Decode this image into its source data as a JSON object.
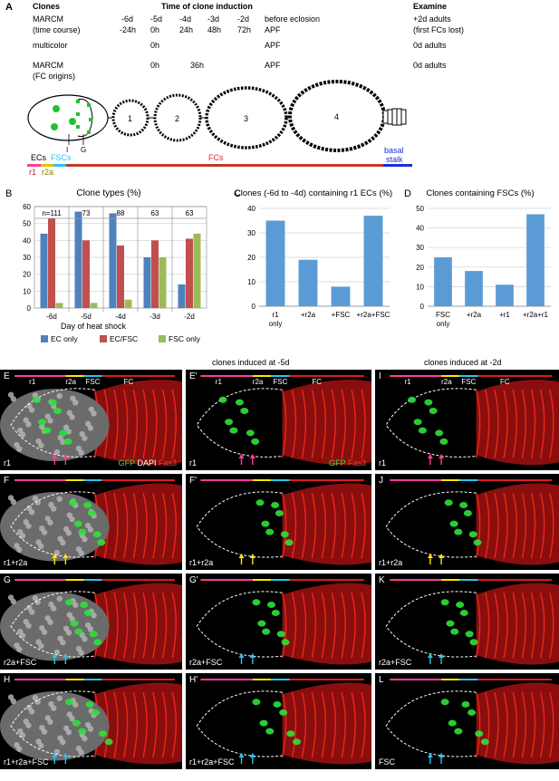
{
  "panelA": {
    "label": "A",
    "headers": {
      "clones": "Clones",
      "time": "Time of clone induction",
      "examine": "Examine"
    },
    "rows": [
      {
        "c1": "MARCM",
        "c2": "(time course)",
        "times1": [
          "-6d",
          "-5d",
          "-4d",
          "-3d",
          "-2d",
          "before eclosion"
        ],
        "times2": [
          "-24h",
          "0h",
          "24h",
          "48h",
          "72h",
          "APF"
        ],
        "ex1": "+2d adults",
        "ex2": "(first FCs lost)"
      },
      {
        "c1": "multicolor",
        "c2": "",
        "times1": [
          "0h",
          "APF"
        ],
        "ex1": "0d adults"
      },
      {
        "c1": "MARCM",
        "c2": "(FC origins)",
        "times1": [
          "0h",
          "36h",
          "APF"
        ],
        "ex1": "0d adults"
      }
    ],
    "diagram": {
      "egg_numbers": [
        "1",
        "2",
        "3",
        "4"
      ],
      "I": "I",
      "G": "G"
    },
    "regions": {
      "ecs": "ECs",
      "fscs": "FSCs",
      "fcs": "FCs",
      "basal": "basal",
      "stalk": "stalk",
      "r1": "r1",
      "r2a": "r2a"
    }
  },
  "chart_data": [
    {
      "panel": "B",
      "type": "bar",
      "title": "Clone types (%)",
      "xlabel": "Day of heat shock",
      "categories": [
        "-6d",
        "-5d",
        "-4d",
        "-3d",
        "-2d"
      ],
      "n_labels": [
        "n=111",
        "73",
        "88",
        "63",
        "63"
      ],
      "ylim": [
        0,
        60
      ],
      "yticks": [
        0,
        10,
        20,
        30,
        40,
        50,
        60
      ],
      "series": [
        {
          "name": "EC only",
          "color": "#4f81bd",
          "values": [
            44,
            57,
            56,
            30,
            14
          ]
        },
        {
          "name": "EC/FSC",
          "color": "#c0504d",
          "values": [
            53,
            40,
            37,
            40,
            41
          ]
        },
        {
          "name": "FSC only",
          "color": "#9bbb59",
          "values": [
            3,
            3,
            5,
            30,
            44
          ]
        }
      ]
    },
    {
      "panel": "C",
      "type": "bar",
      "title": "Clones (-6d to -4d) containing r1 ECs (%)",
      "categories": [
        "r1 only",
        "+r2a",
        "+FSC",
        "+r2a+FSC"
      ],
      "ylim": [
        0,
        40
      ],
      "yticks": [
        0,
        10,
        20,
        30,
        40
      ],
      "series": [
        {
          "color": "#5b9bd5",
          "values": [
            35,
            19,
            8,
            37
          ]
        }
      ]
    },
    {
      "panel": "D",
      "type": "bar",
      "title": "Clones containing FSCs (%)",
      "categories": [
        "FSC only",
        "+r2a",
        "+r1",
        "+r2a+r1"
      ],
      "ylim": [
        0,
        50
      ],
      "yticks": [
        0,
        10,
        20,
        30,
        40,
        50
      ],
      "series": [
        {
          "color": "#5b9bd5",
          "values": [
            25,
            18,
            11,
            47
          ]
        }
      ]
    }
  ],
  "micro": {
    "header_left": "clones induced at -5d",
    "header_right": "clones induced at -2d",
    "region_labels": {
      "r1": "r1",
      "r2a": "r2a",
      "fsc": "FSC",
      "fc": "FC"
    },
    "stain_left": {
      "gfp": "GFP",
      "dapi": "DAPI",
      "fas3": "Fas3"
    },
    "stain_mid": {
      "gfp": "GFP",
      "fas3": "Fas3"
    },
    "panels": [
      {
        "id": "E",
        "bottom": "r1"
      },
      {
        "id": "E'",
        "bottom": "r1"
      },
      {
        "id": "I",
        "bottom": "r1"
      },
      {
        "id": "F",
        "bottom": "r1+r2a"
      },
      {
        "id": "F'",
        "bottom": "r1+r2a"
      },
      {
        "id": "J",
        "bottom": "r1+r2a"
      },
      {
        "id": "G",
        "bottom": "r2a+FSC"
      },
      {
        "id": "G'",
        "bottom": "r2a+FSC"
      },
      {
        "id": "K",
        "bottom": "r2a+FSC"
      },
      {
        "id": "H",
        "bottom": "r1+r2a+FSC"
      },
      {
        "id": "H'",
        "bottom": "r1+r2a+FSC"
      },
      {
        "id": "L",
        "bottom": "FSC"
      }
    ],
    "colors": {
      "magenta": "#ff3d9a",
      "yellow": "#ffe600",
      "cyan": "#29c4f0",
      "red": "#e01b1b"
    }
  }
}
